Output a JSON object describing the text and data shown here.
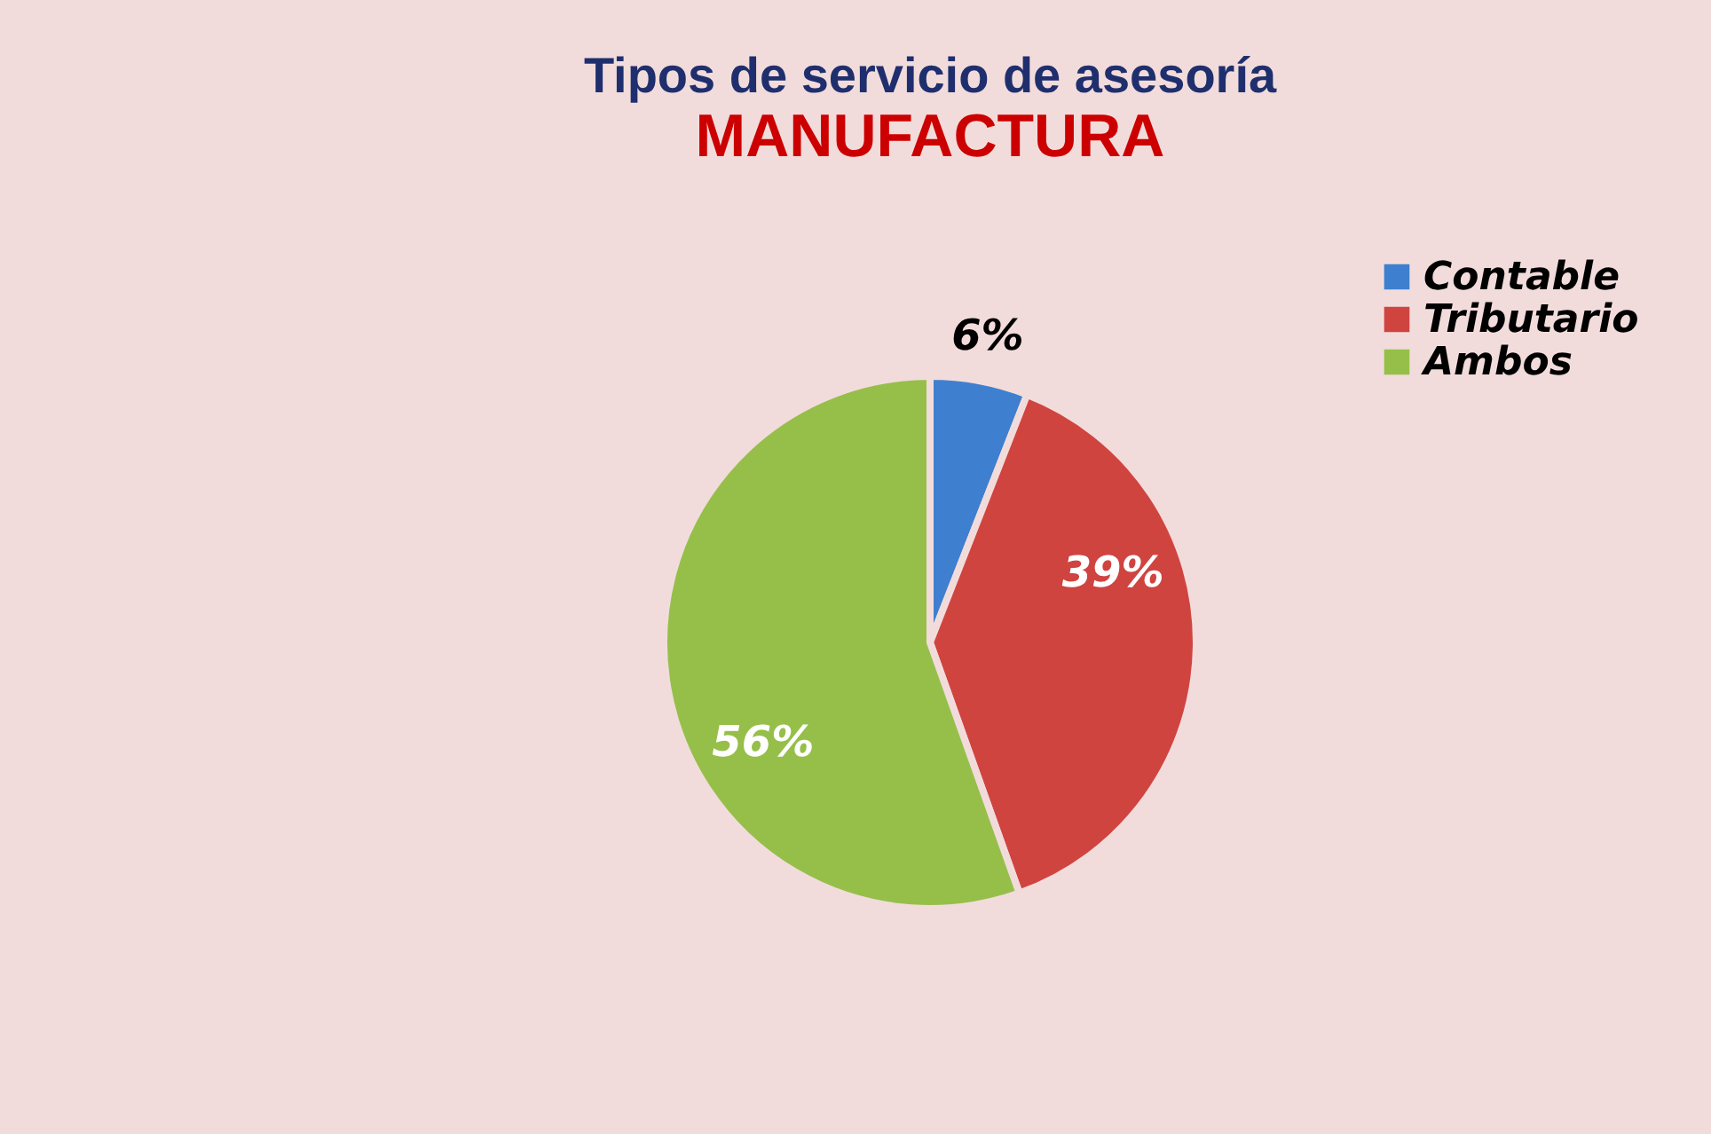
{
  "chart_data": {
    "type": "pie",
    "title": "Tipos de servicio de asesoría",
    "subtitle": "MANUFACTURA",
    "categories": [
      "Contable",
      "Tributario",
      "Ambos"
    ],
    "values": [
      6,
      39,
      56
    ],
    "colors": [
      "#3f7fcf",
      "#d04440",
      "#96bf4a"
    ],
    "value_labels": [
      "6%",
      "39%",
      "56%"
    ],
    "legend": "right"
  }
}
